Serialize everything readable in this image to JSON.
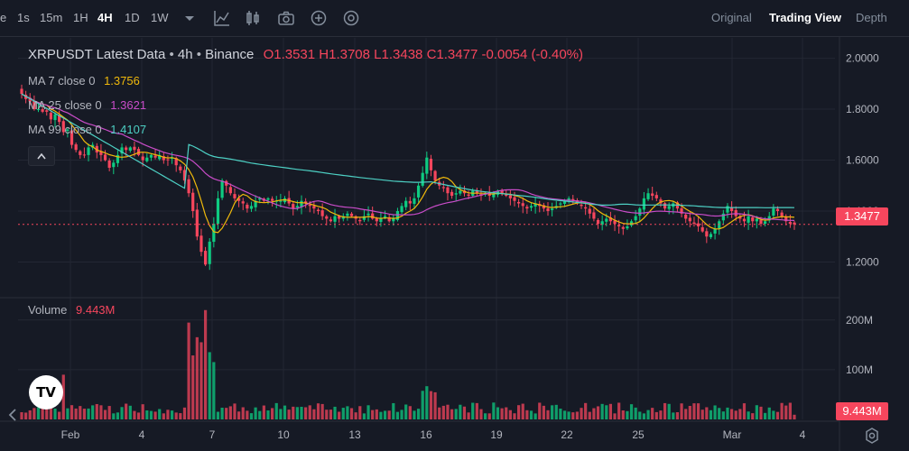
{
  "toolbar": {
    "timeframes": [
      {
        "label": "e",
        "active": false
      },
      {
        "label": "1s",
        "active": false
      },
      {
        "label": "15m",
        "active": false
      },
      {
        "label": "1H",
        "active": false
      },
      {
        "label": "4H",
        "active": true
      },
      {
        "label": "1D",
        "active": false
      },
      {
        "label": "1W",
        "active": false
      }
    ],
    "icons": [
      "chevron-down-icon",
      "indicators-icon",
      "candlestick-type-icon",
      "camera-icon",
      "plus-circle-icon",
      "settings-target-icon"
    ],
    "views": [
      {
        "label": "Original",
        "active": false
      },
      {
        "label": "Trading View",
        "active": true
      },
      {
        "label": "Depth",
        "active": false
      }
    ]
  },
  "header": {
    "symbol": "XRPUSDT Latest Data",
    "interval": "4h",
    "exchange": "Binance",
    "open": "O1.3531",
    "high": "H1.3708",
    "low": "L1.3438",
    "close": "C1.3477",
    "change": "-0.0054 (-0.40%)"
  },
  "indicators": [
    {
      "label": "MA 7 close 0",
      "value": "1.3756",
      "color": "#f0b90b"
    },
    {
      "label": "MA 25 close 0",
      "value": "1.3621",
      "color": "#c94cc9"
    },
    {
      "label": "MA 99 close 0",
      "value": "1.4107",
      "color": "#4dd0c4"
    }
  ],
  "volume_label": {
    "label": "Volume",
    "value": "9.443M"
  },
  "price_tag": "1.3477",
  "volume_tag": "9.443M",
  "colors": {
    "up": "#0ecb81",
    "down": "#f6465d",
    "ma7": "#f0b90b",
    "ma25": "#c94cc9",
    "ma99": "#4dd0c4",
    "background": "#161a25",
    "grid": "#232733"
  },
  "chart_data": {
    "type": "candlestick",
    "title": "XRPUSDT Latest Data",
    "price_axis": {
      "ticks": [
        "2.0000",
        "1.8000",
        "1.6000",
        "1.4000",
        "1.2000"
      ],
      "tick_values": [
        2.0,
        1.8,
        1.6,
        1.4,
        1.2
      ],
      "ylim": [
        1.06,
        2.08
      ]
    },
    "volume_axis": {
      "ticks": [
        "200M",
        "100M"
      ],
      "tick_values": [
        200,
        100
      ],
      "ylim": [
        0,
        245
      ]
    },
    "x_labels": [
      "Feb",
      "4",
      "7",
      "10",
      "13",
      "16",
      "19",
      "22",
      "25",
      "Mar",
      "4"
    ],
    "close_series": [
      1.86,
      1.84,
      1.83,
      1.8,
      1.8,
      1.79,
      1.79,
      1.76,
      1.78,
      1.75,
      1.71,
      1.72,
      1.66,
      1.64,
      1.62,
      1.62,
      1.65,
      1.66,
      1.63,
      1.62,
      1.6,
      1.57,
      1.59,
      1.62,
      1.65,
      1.64,
      1.65,
      1.64,
      1.62,
      1.6,
      1.61,
      1.62,
      1.61,
      1.62,
      1.6,
      1.6,
      1.61,
      1.58,
      1.56,
      1.52,
      1.47,
      1.4,
      1.3,
      1.24,
      1.19,
      1.28,
      1.35,
      1.45,
      1.52,
      1.5,
      1.47,
      1.45,
      1.44,
      1.43,
      1.41,
      1.42,
      1.44,
      1.45,
      1.44,
      1.45,
      1.44,
      1.44,
      1.44,
      1.45,
      1.43,
      1.41,
      1.42,
      1.44,
      1.43,
      1.42,
      1.41,
      1.4,
      1.38,
      1.37,
      1.36,
      1.38,
      1.37,
      1.38,
      1.39,
      1.38,
      1.37,
      1.36,
      1.38,
      1.39,
      1.37,
      1.36,
      1.37,
      1.38,
      1.36,
      1.37,
      1.4,
      1.42,
      1.44,
      1.43,
      1.45,
      1.5,
      1.55,
      1.61,
      1.56,
      1.52,
      1.5,
      1.49,
      1.47,
      1.46,
      1.47,
      1.48,
      1.47,
      1.46,
      1.48,
      1.47,
      1.46,
      1.47,
      1.46,
      1.47,
      1.48,
      1.47,
      1.46,
      1.45,
      1.44,
      1.43,
      1.42,
      1.41,
      1.42,
      1.43,
      1.42,
      1.41,
      1.4,
      1.41,
      1.42,
      1.43,
      1.44,
      1.45,
      1.44,
      1.43,
      1.42,
      1.41,
      1.39,
      1.37,
      1.35,
      1.36,
      1.37,
      1.36,
      1.35,
      1.34,
      1.33,
      1.34,
      1.36,
      1.38,
      1.41,
      1.45,
      1.47,
      1.46,
      1.45,
      1.43,
      1.41,
      1.42,
      1.43,
      1.41,
      1.39,
      1.37,
      1.36,
      1.35,
      1.34,
      1.32,
      1.3,
      1.31,
      1.33,
      1.36,
      1.39,
      1.42,
      1.4,
      1.38,
      1.37,
      1.36,
      1.38,
      1.36,
      1.37,
      1.35,
      1.36,
      1.38,
      1.41,
      1.4,
      1.38,
      1.36,
      1.35,
      1.3477
    ],
    "ma7_last": 1.3756,
    "ma25_last": 1.3621,
    "ma99_last": 1.4107,
    "volume_last_millions": 9.443,
    "volume_peaks_millions": {
      "Feb 1": 90,
      "Feb 6": 220,
      "Feb 15": 70,
      "Feb 26": 60,
      "Mar 3": 45
    }
  }
}
